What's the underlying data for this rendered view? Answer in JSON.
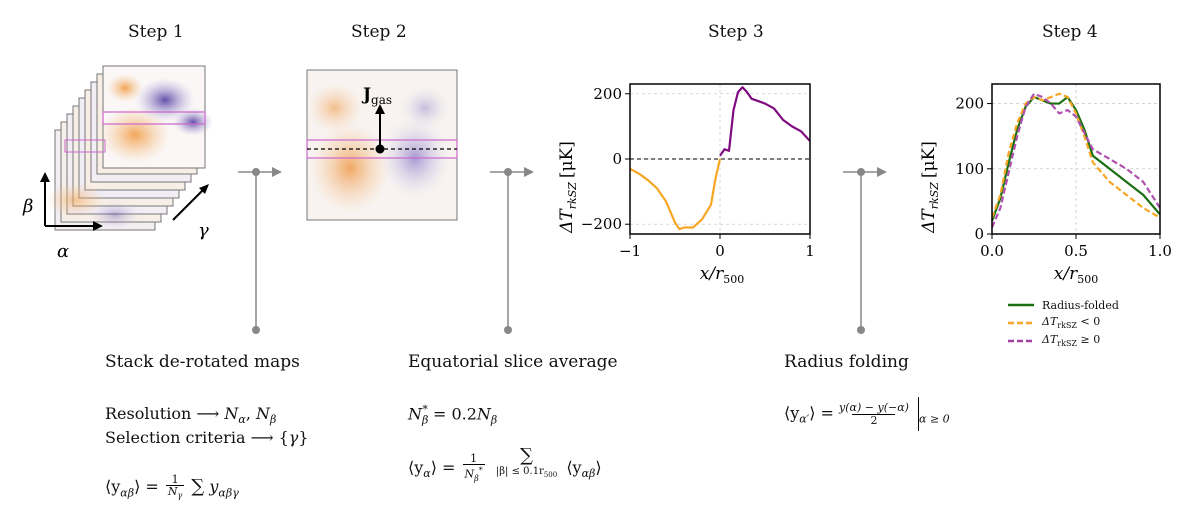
{
  "steps": [
    "Step 1",
    "Step 2",
    "Step 3",
    "Step 4"
  ],
  "step1": {
    "axis_alpha": "α",
    "axis_beta": "β",
    "axis_gamma": "γ",
    "heading": "Stack de-rotated maps",
    "line1_left": "Resolution ⟶ ",
    "line1_right": "N",
    "line2_left": "Selection criteria ⟶ {",
    "line2_var": "γ",
    "line2_end": "}",
    "formula_lhs": "⟨y",
    "formula_rhs": "y"
  },
  "step2": {
    "vector_label": "J",
    "vector_sub": "gas",
    "heading": "Equatorial slice average",
    "eq1": "= 0.2",
    "formula_lhs": "⟨y",
    "sum_limit": "|β| ≤ 0.1r",
    "formula_rhs": "⟨y"
  },
  "step3": {
    "ylabel": "ΔT",
    "ylabel_sub": "rkSZ",
    "ylabel_unit": "[μK]",
    "xlabel": "x/r",
    "xlabel_sub": "500"
  },
  "step4": {
    "ylabel": "ΔT",
    "ylabel_sub": "rkSZ",
    "ylabel_unit": "[μK]",
    "xlabel": "x/r",
    "xlabel_sub": "500",
    "heading": "Radius folding",
    "formula_lhs": "⟨y",
    "formula_num": "y(α) − y(−α)",
    "formula_den": "2",
    "formula_cond": "α ≥ 0",
    "legend": [
      {
        "label": "Radius-folded",
        "color": "#1a6e12",
        "dash": false
      },
      {
        "label": "ΔT",
        "sub": "rkSZ",
        "suffix": " < 0",
        "color": "#f5a623",
        "dash": true
      },
      {
        "label": "ΔT",
        "sub": "rkSZ",
        "suffix": " ≥ 0",
        "color": "#a040a0",
        "dash": true
      }
    ]
  },
  "chart_data": [
    {
      "type": "line",
      "title": "Step 3",
      "xlabel": "x/r500",
      "ylabel": "ΔT_rkSZ [μK]",
      "xlim": [
        -1,
        1
      ],
      "ylim": [
        -230,
        230
      ],
      "xticks": [
        -1,
        0,
        1
      ],
      "yticks": [
        -200,
        0,
        200
      ],
      "grid": true,
      "series": [
        {
          "name": "negative side",
          "color": "#f5a623",
          "x": [
            -1.0,
            -0.9,
            -0.8,
            -0.7,
            -0.6,
            -0.5,
            -0.45,
            -0.4,
            -0.3,
            -0.2,
            -0.1,
            -0.05,
            0.0
          ],
          "y": [
            -30,
            -45,
            -65,
            -90,
            -130,
            -195,
            -215,
            -210,
            -210,
            -185,
            -140,
            -60,
            0
          ]
        },
        {
          "name": "positive side",
          "color": "#800a80",
          "x": [
            0.0,
            0.05,
            0.1,
            0.15,
            0.2,
            0.25,
            0.3,
            0.35,
            0.4,
            0.5,
            0.6,
            0.7,
            0.8,
            0.9,
            1.0
          ],
          "y": [
            10,
            30,
            25,
            150,
            205,
            220,
            205,
            185,
            180,
            170,
            155,
            120,
            100,
            85,
            55
          ]
        }
      ]
    },
    {
      "type": "line",
      "title": "Step 4",
      "xlabel": "x/r500",
      "ylabel": "ΔT_rkSZ [μK]",
      "xlim": [
        0,
        1
      ],
      "ylim": [
        0,
        230
      ],
      "xticks": [
        0.0,
        0.5,
        1.0
      ],
      "yticks": [
        0,
        100,
        200
      ],
      "grid": true,
      "legend": "lower-right outside",
      "series": [
        {
          "name": "Radius-folded",
          "color": "#1a6e12",
          "dash": false,
          "x": [
            0.0,
            0.05,
            0.1,
            0.15,
            0.2,
            0.25,
            0.3,
            0.35,
            0.4,
            0.45,
            0.5,
            0.55,
            0.6,
            0.7,
            0.8,
            0.9,
            1.0
          ],
          "y": [
            20,
            55,
            110,
            160,
            195,
            210,
            205,
            200,
            200,
            210,
            190,
            160,
            120,
            100,
            80,
            60,
            30
          ]
        },
        {
          "name": "ΔT_rkSZ < 0",
          "color": "#f5a623",
          "dash": true,
          "x": [
            0.0,
            0.05,
            0.1,
            0.15,
            0.2,
            0.25,
            0.3,
            0.35,
            0.4,
            0.45,
            0.5,
            0.55,
            0.6,
            0.7,
            0.8,
            0.9,
            1.0
          ],
          "y": [
            25,
            60,
            125,
            170,
            200,
            210,
            205,
            210,
            215,
            210,
            185,
            150,
            110,
            80,
            60,
            40,
            25
          ]
        },
        {
          "name": "ΔT_rkSZ ≥ 0",
          "color": "#b050b0",
          "dash": true,
          "x": [
            0.0,
            0.05,
            0.1,
            0.15,
            0.2,
            0.25,
            0.3,
            0.35,
            0.4,
            0.45,
            0.5,
            0.55,
            0.6,
            0.7,
            0.8,
            0.9,
            1.0
          ],
          "y": [
            10,
            40,
            95,
            150,
            195,
            215,
            210,
            200,
            185,
            190,
            180,
            155,
            130,
            115,
            100,
            80,
            40
          ]
        }
      ]
    }
  ]
}
